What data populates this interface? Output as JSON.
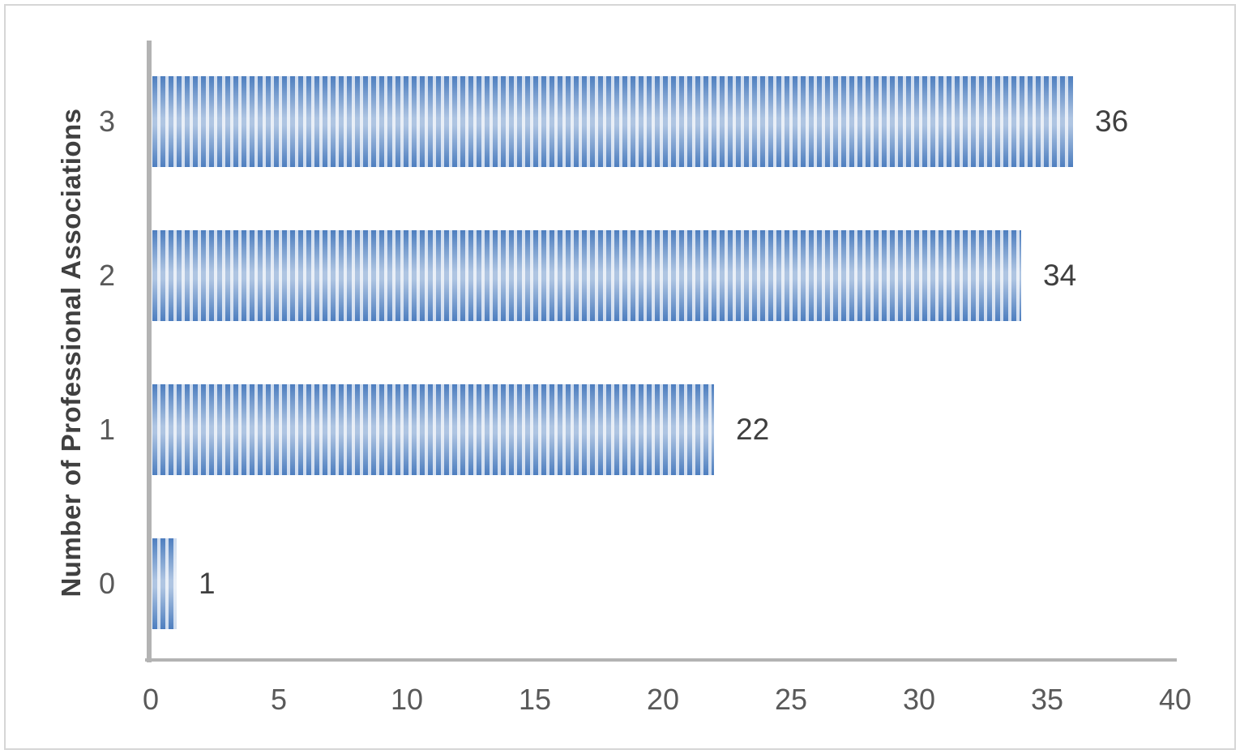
{
  "figure": {
    "background_color": "#ffffff",
    "border_color": "#d6d6d6"
  },
  "chart_data": {
    "type": "bar",
    "orientation": "horizontal",
    "title": "",
    "xlabel": "",
    "ylabel": "Number of Professional Associations",
    "categories": [
      "3",
      "2",
      "1",
      "0"
    ],
    "values": [
      36,
      34,
      22,
      1
    ],
    "data_labels": [
      "36",
      "34",
      "22",
      "1"
    ],
    "x_ticks": [
      "0",
      "5",
      "10",
      "15",
      "20",
      "25",
      "30",
      "35",
      "40"
    ],
    "x_tick_values": [
      0,
      5,
      10,
      15,
      20,
      25,
      30,
      35,
      40
    ],
    "xlim": [
      0,
      40
    ],
    "grid": false,
    "legend": false,
    "bar_pattern": "vertical-stripes",
    "colors": {
      "bar_stripe": "#4d7ebf",
      "bar_stripe_gap": "#cfdcee",
      "axis_line": "#b3b3b3",
      "tick_label": "#595959",
      "data_label": "#3f3f3f",
      "axis_title": "#404040"
    }
  }
}
